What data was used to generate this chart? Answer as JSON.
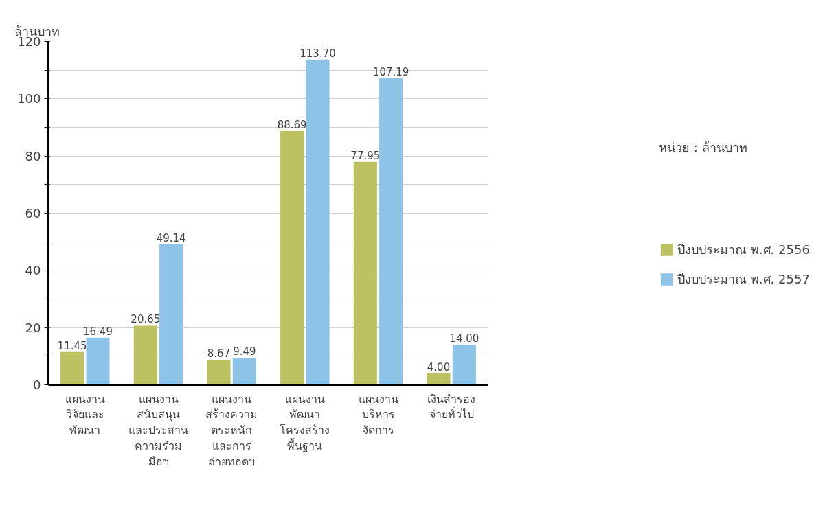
{
  "chart_data": {
    "type": "bar",
    "ylabel": "ล้านบาท",
    "annotations": [
      "หน่วย : ล้านบาท"
    ],
    "categories": [
      "แผนงาน\nวิจัยและ\nพัฒนา",
      "แผนงาน\nสนับสนุน\nและประสาน\nความร่วม\nมือฯ",
      "แผนงาน\nสร้างความ\nตระหนัก\nและการ\nถ่ายทอดฯ",
      "แผนงาน\nพัฒนา\nโครงสร้าง\nพื้นฐาน",
      "แผนงาน\nบริหาร\nจัดการ",
      "เงินสำรอง\nจ่ายทั่วไป"
    ],
    "series": [
      {
        "name": "ปีงบประมาณ พ.ศ. 2556",
        "color": "#bcc262",
        "values": [
          11.45,
          20.65,
          8.67,
          88.69,
          77.95,
          4.0
        ],
        "value_labels": [
          "11.45",
          "20.65",
          "8.67",
          "88.69",
          "77.95",
          "4.00"
        ]
      },
      {
        "name": "ปีงบประมาณ พ.ศ. 2557",
        "color": "#8ec3e8",
        "values": [
          16.49,
          49.14,
          9.49,
          113.7,
          107.19,
          14.0
        ],
        "value_labels": [
          "16.49",
          "49.14",
          "9.49",
          "113.70",
          "107.19",
          "14.00"
        ]
      }
    ],
    "ylim": [
      0,
      120
    ],
    "yticks": [
      0,
      {
        "value": 10,
        "label": null
      },
      20,
      {
        "value": 30,
        "label": null
      },
      40,
      {
        "value": 50,
        "label": null
      },
      60,
      {
        "value": 70,
        "label": null
      },
      80,
      {
        "value": 90,
        "label": null
      },
      100,
      {
        "value": 110,
        "label": null
      },
      120
    ],
    "grid": "y",
    "legend": "right"
  }
}
